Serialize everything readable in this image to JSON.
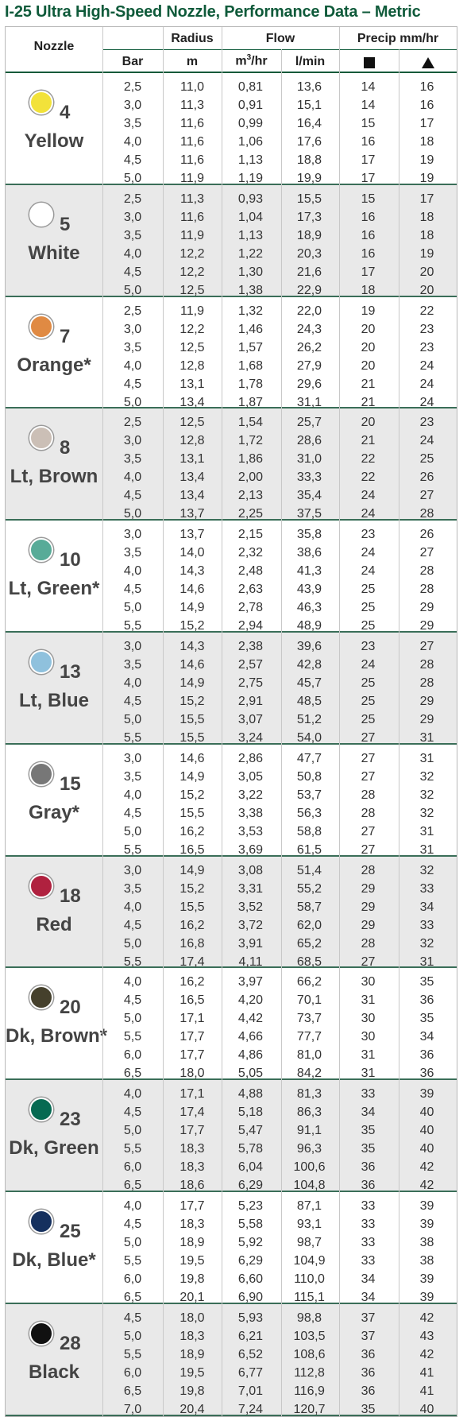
{
  "title": "I-25 Ultra High-Speed Nozzle, Performance Data – Metric",
  "headers": {
    "nozzle": "Nozzle",
    "radius": "Radius",
    "flow": "Flow",
    "precip": "Precip mm/hr",
    "bar": "Bar",
    "m": "m",
    "m3hr_base": "m",
    "m3hr_sup": "3",
    "m3hr_tail": "/hr",
    "lmin": "l/min",
    "square_icon": "square-spacing-icon",
    "triangle_icon": "triangle-spacing-icon"
  },
  "nozzles": [
    {
      "number": "4",
      "name": "Yellow",
      "color": "#f2e23a",
      "rows": [
        [
          "2,5",
          "11,0",
          "0,81",
          "13,6",
          "14",
          "16"
        ],
        [
          "3,0",
          "11,3",
          "0,91",
          "15,1",
          "14",
          "16"
        ],
        [
          "3,5",
          "11,6",
          "0,99",
          "16,4",
          "15",
          "17"
        ],
        [
          "4,0",
          "11,6",
          "1,06",
          "17,6",
          "16",
          "18"
        ],
        [
          "4,5",
          "11,6",
          "1,13",
          "18,8",
          "17",
          "19"
        ],
        [
          "5,0",
          "11,9",
          "1,19",
          "19,9",
          "17",
          "19"
        ]
      ]
    },
    {
      "number": "5",
      "name": "White",
      "color": "#ffffff",
      "rows": [
        [
          "2,5",
          "11,3",
          "0,93",
          "15,5",
          "15",
          "17"
        ],
        [
          "3,0",
          "11,6",
          "1,04",
          "17,3",
          "16",
          "18"
        ],
        [
          "3,5",
          "11,9",
          "1,13",
          "18,9",
          "16",
          "18"
        ],
        [
          "4,0",
          "12,2",
          "1,22",
          "20,3",
          "16",
          "19"
        ],
        [
          "4,5",
          "12,2",
          "1,30",
          "21,6",
          "17",
          "20"
        ],
        [
          "5,0",
          "12,5",
          "1,38",
          "22,9",
          "18",
          "20"
        ]
      ]
    },
    {
      "number": "7",
      "name": "Orange*",
      "color": "#e08a43",
      "rows": [
        [
          "2,5",
          "11,9",
          "1,32",
          "22,0",
          "19",
          "22"
        ],
        [
          "3,0",
          "12,2",
          "1,46",
          "24,3",
          "20",
          "23"
        ],
        [
          "3,5",
          "12,5",
          "1,57",
          "26,2",
          "20",
          "23"
        ],
        [
          "4,0",
          "12,8",
          "1,68",
          "27,9",
          "20",
          "24"
        ],
        [
          "4,5",
          "13,1",
          "1,78",
          "29,6",
          "21",
          "24"
        ],
        [
          "5,0",
          "13,4",
          "1,87",
          "31,1",
          "21",
          "24"
        ]
      ]
    },
    {
      "number": "8",
      "name": "Lt, Brown",
      "color": "#cbbfb6",
      "rows": [
        [
          "2,5",
          "12,5",
          "1,54",
          "25,7",
          "20",
          "23"
        ],
        [
          "3,0",
          "12,8",
          "1,72",
          "28,6",
          "21",
          "24"
        ],
        [
          "3,5",
          "13,1",
          "1,86",
          "31,0",
          "22",
          "25"
        ],
        [
          "4,0",
          "13,4",
          "2,00",
          "33,3",
          "22",
          "26"
        ],
        [
          "4,5",
          "13,4",
          "2,13",
          "35,4",
          "24",
          "27"
        ],
        [
          "5,0",
          "13,7",
          "2,25",
          "37,5",
          "24",
          "28"
        ]
      ]
    },
    {
      "number": "10",
      "name": "Lt, Green*",
      "color": "#58ab98",
      "rows": [
        [
          "3,0",
          "13,7",
          "2,15",
          "35,8",
          "23",
          "26"
        ],
        [
          "3,5",
          "14,0",
          "2,32",
          "38,6",
          "24",
          "27"
        ],
        [
          "4,0",
          "14,3",
          "2,48",
          "41,3",
          "24",
          "28"
        ],
        [
          "4,5",
          "14,6",
          "2,63",
          "43,9",
          "25",
          "28"
        ],
        [
          "5,0",
          "14,9",
          "2,78",
          "46,3",
          "25",
          "29"
        ],
        [
          "5,5",
          "15,2",
          "2,94",
          "48,9",
          "25",
          "29"
        ]
      ]
    },
    {
      "number": "13",
      "name": "Lt, Blue",
      "color": "#8fc1dd",
      "rows": [
        [
          "3,0",
          "14,3",
          "2,38",
          "39,6",
          "23",
          "27"
        ],
        [
          "3,5",
          "14,6",
          "2,57",
          "42,8",
          "24",
          "28"
        ],
        [
          "4,0",
          "14,9",
          "2,75",
          "45,7",
          "25",
          "28"
        ],
        [
          "4,5",
          "15,2",
          "2,91",
          "48,5",
          "25",
          "29"
        ],
        [
          "5,0",
          "15,5",
          "3,07",
          "51,2",
          "25",
          "29"
        ],
        [
          "5,5",
          "15,5",
          "3,24",
          "54,0",
          "27",
          "31"
        ]
      ]
    },
    {
      "number": "15",
      "name": "Gray*",
      "color": "#777777",
      "rows": [
        [
          "3,0",
          "14,6",
          "2,86",
          "47,7",
          "27",
          "31"
        ],
        [
          "3,5",
          "14,9",
          "3,05",
          "50,8",
          "27",
          "32"
        ],
        [
          "4,0",
          "15,2",
          "3,22",
          "53,7",
          "28",
          "32"
        ],
        [
          "4,5",
          "15,5",
          "3,38",
          "56,3",
          "28",
          "32"
        ],
        [
          "5,0",
          "16,2",
          "3,53",
          "58,8",
          "27",
          "31"
        ],
        [
          "5,5",
          "16,5",
          "3,69",
          "61,5",
          "27",
          "31"
        ]
      ]
    },
    {
      "number": "18",
      "name": "Red",
      "color": "#b0213f",
      "rows": [
        [
          "3,0",
          "14,9",
          "3,08",
          "51,4",
          "28",
          "32"
        ],
        [
          "3,5",
          "15,2",
          "3,31",
          "55,2",
          "29",
          "33"
        ],
        [
          "4,0",
          "15,5",
          "3,52",
          "58,7",
          "29",
          "34"
        ],
        [
          "4,5",
          "16,2",
          "3,72",
          "62,0",
          "29",
          "33"
        ],
        [
          "5,0",
          "16,8",
          "3,91",
          "65,2",
          "28",
          "32"
        ],
        [
          "5,5",
          "17,4",
          "4,11",
          "68,5",
          "27",
          "31"
        ]
      ]
    },
    {
      "number": "20",
      "name": "Dk, Brown*",
      "color": "#45402c",
      "rows": [
        [
          "4,0",
          "16,2",
          "3,97",
          "66,2",
          "30",
          "35"
        ],
        [
          "4,5",
          "16,5",
          "4,20",
          "70,1",
          "31",
          "36"
        ],
        [
          "5,0",
          "17,1",
          "4,42",
          "73,7",
          "30",
          "35"
        ],
        [
          "5,5",
          "17,7",
          "4,66",
          "77,7",
          "30",
          "34"
        ],
        [
          "6,0",
          "17,7",
          "4,86",
          "81,0",
          "31",
          "36"
        ],
        [
          "6,5",
          "18,0",
          "5,05",
          "84,2",
          "31",
          "36"
        ]
      ]
    },
    {
      "number": "23",
      "name": "Dk, Green",
      "color": "#066a52",
      "rows": [
        [
          "4,0",
          "17,1",
          "4,88",
          "81,3",
          "33",
          "39"
        ],
        [
          "4,5",
          "17,4",
          "5,18",
          "86,3",
          "34",
          "40"
        ],
        [
          "5,0",
          "17,7",
          "5,47",
          "91,1",
          "35",
          "40"
        ],
        [
          "5,5",
          "18,3",
          "5,78",
          "96,3",
          "35",
          "40"
        ],
        [
          "6,0",
          "18,3",
          "6,04",
          "100,6",
          "36",
          "42"
        ],
        [
          "6,5",
          "18,6",
          "6,29",
          "104,8",
          "36",
          "42"
        ]
      ]
    },
    {
      "number": "25",
      "name": "Dk, Blue*",
      "color": "#15305e",
      "rows": [
        [
          "4,0",
          "17,7",
          "5,23",
          "87,1",
          "33",
          "39"
        ],
        [
          "4,5",
          "18,3",
          "5,58",
          "93,1",
          "33",
          "39"
        ],
        [
          "5,0",
          "18,9",
          "5,92",
          "98,7",
          "33",
          "38"
        ],
        [
          "5,5",
          "19,5",
          "6,29",
          "104,9",
          "33",
          "38"
        ],
        [
          "6,0",
          "19,8",
          "6,60",
          "110,0",
          "34",
          "39"
        ],
        [
          "6,5",
          "20,1",
          "6,90",
          "115,1",
          "34",
          "39"
        ]
      ]
    },
    {
      "number": "28",
      "name": "Black",
      "color": "#111111",
      "rows": [
        [
          "4,5",
          "18,0",
          "5,93",
          "98,8",
          "37",
          "42"
        ],
        [
          "5,0",
          "18,3",
          "6,21",
          "103,5",
          "37",
          "43"
        ],
        [
          "5,5",
          "18,9",
          "6,52",
          "108,6",
          "36",
          "42"
        ],
        [
          "6,0",
          "19,5",
          "6,77",
          "112,8",
          "36",
          "41"
        ],
        [
          "6,5",
          "19,8",
          "7,01",
          "116,9",
          "36",
          "41"
        ],
        [
          "7,0",
          "20,4",
          "7,24",
          "120,7",
          "35",
          "40"
        ]
      ]
    }
  ]
}
